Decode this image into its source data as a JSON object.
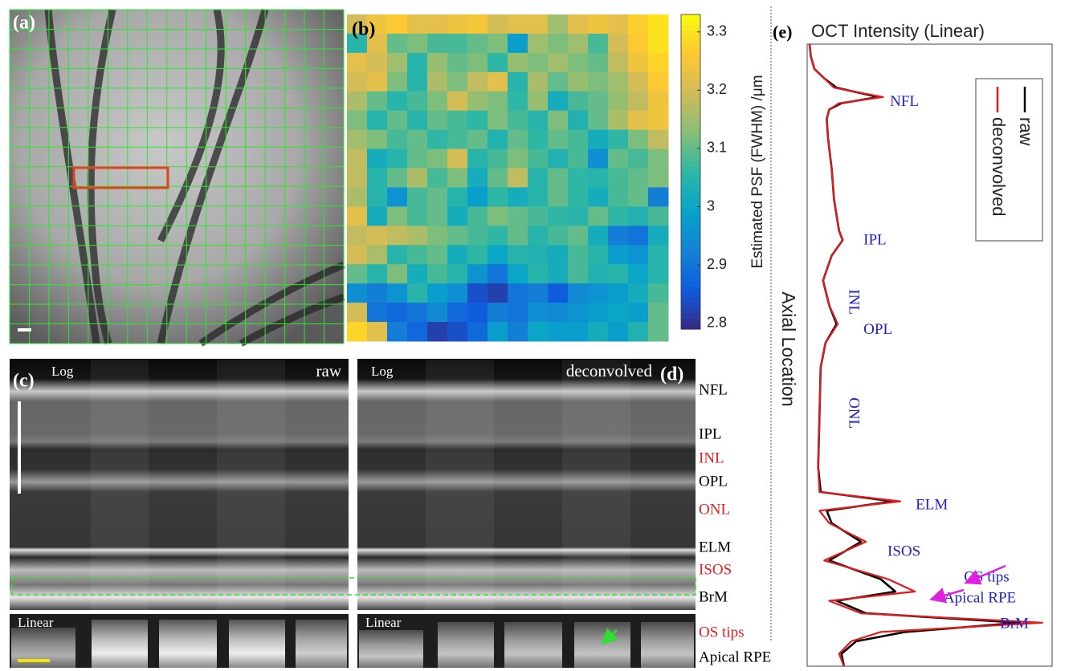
{
  "figure": {
    "a": {
      "label": "(a)"
    },
    "b": {
      "label": "(b)"
    },
    "c": {
      "label": "(c)",
      "scale": "Log",
      "mode": "raw",
      "linear": "Linear"
    },
    "d": {
      "label": "(d)",
      "scale": "Log",
      "mode": "deconvolved",
      "linear": "Linear"
    },
    "e": {
      "label": "(e)"
    },
    "layers": [
      {
        "text": "NFL",
        "color": "#000000"
      },
      {
        "text": "IPL",
        "color": "#000000"
      },
      {
        "text": "INL",
        "color": "#e02020"
      },
      {
        "text": "OPL",
        "color": "#000000"
      },
      {
        "text": "ONL",
        "color": "#e02020"
      },
      {
        "text": "ELM",
        "color": "#000000"
      },
      {
        "text": "ISOS",
        "color": "#e02020"
      },
      {
        "text": "BrM",
        "color": "#000000"
      },
      {
        "text": "OS tips",
        "color": "#e02020"
      },
      {
        "text": "Apical RPE",
        "color": "#000000"
      }
    ]
  },
  "chart_data": [
    {
      "type": "heatmap",
      "colorbar_label": "Estimated PSF (FWHM) /μm",
      "zlim": [
        2.79,
        3.33
      ],
      "zticks": [
        2.8,
        2.9,
        3,
        3.1,
        3.2,
        3.3
      ],
      "colormap": [
        "#352a87",
        "#0f5cdd",
        "#1481d6",
        "#06a4ca",
        "#2eb7a4",
        "#87bf77",
        "#d1bb59",
        "#fec832",
        "#f9fb0e"
      ],
      "values": [
        [
          3.2,
          3.24,
          3.26,
          3.22,
          3.22,
          3.24,
          3.25,
          3.2,
          3.22,
          3.22,
          3.15,
          3.22,
          3.24,
          3.22,
          3.27,
          3.3
        ],
        [
          3.05,
          3.22,
          3.1,
          3.12,
          3.08,
          3.08,
          3.1,
          3.12,
          2.98,
          3.15,
          3.12,
          3.15,
          3.08,
          3.2,
          3.26,
          3.3
        ],
        [
          3.22,
          3.2,
          3.15,
          3.05,
          3.14,
          3.1,
          3.12,
          3.06,
          3.14,
          3.12,
          3.15,
          3.12,
          3.1,
          3.18,
          3.24,
          3.28
        ],
        [
          3.2,
          3.22,
          3.12,
          3.05,
          3.16,
          3.12,
          3.18,
          3.22,
          3.05,
          3.16,
          3.1,
          3.14,
          3.12,
          3.15,
          3.2,
          3.26
        ],
        [
          3.16,
          3.1,
          3.05,
          3.08,
          3.12,
          3.2,
          3.14,
          3.12,
          3.06,
          3.14,
          3.02,
          3.08,
          3.1,
          3.14,
          3.18,
          3.24
        ],
        [
          3.12,
          3.05,
          3.1,
          3.05,
          3.1,
          3.08,
          3.06,
          3.12,
          3.08,
          3.05,
          3.12,
          3.04,
          3.1,
          3.16,
          3.22,
          3.24
        ],
        [
          3.15,
          3.12,
          3.08,
          3.1,
          3.06,
          3.08,
          3.1,
          3.04,
          3.1,
          3.06,
          3.1,
          3.08,
          3.02,
          3.06,
          3.12,
          3.18
        ],
        [
          3.18,
          3.02,
          3.05,
          3.1,
          3.12,
          3.2,
          3.05,
          3.08,
          3.12,
          3.08,
          3.04,
          3.08,
          2.95,
          3.1,
          3.08,
          3.12
        ],
        [
          3.18,
          3.05,
          3.1,
          3.16,
          3.08,
          3.12,
          3.02,
          3.1,
          3.18,
          3.05,
          3.1,
          3.06,
          3.05,
          3.08,
          3.1,
          3.12
        ],
        [
          3.16,
          3.05,
          2.96,
          3.08,
          3.1,
          3.05,
          2.98,
          3.06,
          3.02,
          3.05,
          3.1,
          3.06,
          3.02,
          3.08,
          3.1,
          2.92
        ],
        [
          3.22,
          3.02,
          3.12,
          3.08,
          3.1,
          3.02,
          3.08,
          3.12,
          3.1,
          3.08,
          3.06,
          3.05,
          3.1,
          3.06,
          3.04,
          3.08
        ],
        [
          3.18,
          3.2,
          3.18,
          3.16,
          3.12,
          3.1,
          3.08,
          3.06,
          3.1,
          3.05,
          3.08,
          3.1,
          3.02,
          2.92,
          2.9,
          3.02
        ],
        [
          3.2,
          3.16,
          3.05,
          3.08,
          3.1,
          3.02,
          3.06,
          3.0,
          3.05,
          3.04,
          3.02,
          3.08,
          3.05,
          2.98,
          2.96,
          3.05
        ],
        [
          3.1,
          3.05,
          3.12,
          3.02,
          3.08,
          3.05,
          2.96,
          2.9,
          3.0,
          3.05,
          3.02,
          3.08,
          3.04,
          3.05,
          3.0,
          3.05
        ],
        [
          2.95,
          2.92,
          2.96,
          3.05,
          2.98,
          2.95,
          2.84,
          2.82,
          2.9,
          2.92,
          2.86,
          2.94,
          2.96,
          2.98,
          3.02,
          3.08
        ],
        [
          3.2,
          2.9,
          2.88,
          2.9,
          2.94,
          2.88,
          2.86,
          2.92,
          2.9,
          2.95,
          2.94,
          2.96,
          2.98,
          3.0,
          2.98,
          3.1
        ],
        [
          3.28,
          3.22,
          2.92,
          2.88,
          2.82,
          2.84,
          2.88,
          2.98,
          2.92,
          3.0,
          2.98,
          2.98,
          3.02,
          2.98,
          3.04,
          3.1
        ]
      ]
    },
    {
      "type": "line",
      "orientation": "vertical",
      "title": "OCT Intensity (Linear)",
      "xlabel": "Axial Location",
      "xlim": [
        0,
        100
      ],
      "ylim": [
        0,
        100
      ],
      "legend": "upper right",
      "annotation_color": "#2020d0",
      "x": [
        0,
        2,
        4,
        5.5,
        7,
        8.5,
        9.5,
        10.5,
        12,
        15,
        20,
        25,
        30,
        31.5,
        34,
        38,
        42,
        45,
        48,
        52,
        60,
        68,
        72,
        73.5,
        75,
        77,
        80,
        83,
        86,
        88,
        89.5,
        91.5,
        93,
        94.5,
        96,
        98,
        100
      ],
      "series": [
        {
          "name": "raw",
          "color": "#000000",
          "values": [
            1,
            1.5,
            3,
            7,
            12,
            29,
            14,
            9,
            8,
            8.5,
            10,
            11,
            13,
            14.5,
            10,
            6.5,
            9,
            12,
            7.5,
            5.5,
            5,
            4.5,
            5.5,
            35,
            8,
            10,
            22,
            9,
            30,
            36,
            12,
            24,
            87,
            40,
            20,
            14,
            15
          ]
        },
        {
          "name": "deconvolved",
          "color": "#e41a1c",
          "values": [
            1,
            1.5,
            3,
            7,
            11,
            31,
            13,
            9,
            8,
            8.5,
            10,
            11,
            13,
            14.5,
            10,
            6.5,
            9,
            12.5,
            7.5,
            5.5,
            5,
            4.5,
            5,
            38,
            5,
            9,
            24,
            7,
            33,
            44,
            9,
            22,
            96,
            30,
            18,
            13,
            15
          ]
        }
      ],
      "annotations": [
        {
          "text": "NFL",
          "x": 9.4,
          "y": 33.8
        },
        {
          "text": "IPL",
          "x": 31.6,
          "y": 23
        },
        {
          "text": "INL",
          "x": 39.4,
          "y": 18.7,
          "rotated": true
        },
        {
          "text": "OPL",
          "x": 46,
          "y": 23
        },
        {
          "text": "ONL",
          "x": 56.8,
          "y": 18.7,
          "rotated": true
        },
        {
          "text": "ELM",
          "x": 74.2,
          "y": 44.3
        },
        {
          "text": "ISOS",
          "x": 81.7,
          "y": 32.8
        },
        {
          "text": "OS tips",
          "x": 85.8,
          "y": 64
        },
        {
          "text": "Apical RPE",
          "x": 89.2,
          "y": 55.7
        },
        {
          "text": "BrM",
          "x": 93.3,
          "y": 78.7
        }
      ]
    }
  ]
}
